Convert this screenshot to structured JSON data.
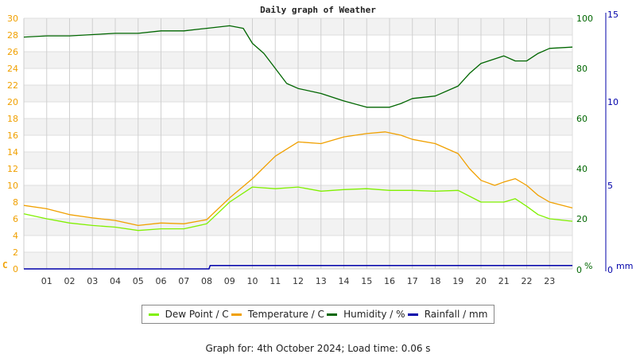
{
  "chart_data": {
    "type": "line",
    "title": "Daily graph of Weather",
    "xlabel": "",
    "x_ticks": [
      "01",
      "02",
      "03",
      "04",
      "05",
      "06",
      "07",
      "08",
      "09",
      "10",
      "11",
      "12",
      "13",
      "14",
      "15",
      "16",
      "17",
      "18",
      "19",
      "20",
      "21",
      "22",
      "23"
    ],
    "x_range": [
      0,
      24
    ],
    "axes": {
      "left": {
        "label": "C",
        "range": [
          0,
          30
        ],
        "ticks": [
          0,
          2,
          4,
          6,
          8,
          10,
          12,
          14,
          16,
          18,
          20,
          22,
          24,
          26,
          28,
          30
        ],
        "color": "#f0a000"
      },
      "right": {
        "label": "%",
        "range": [
          0,
          100
        ],
        "ticks": [
          0,
          20,
          40,
          60,
          80,
          100
        ],
        "color": "#006600"
      },
      "rain": {
        "label": "mm",
        "range": [
          0,
          15
        ],
        "ticks": [
          0,
          5,
          10,
          15
        ],
        "color": "#0000aa"
      }
    },
    "grid": true,
    "legend_position": "bottom",
    "series": [
      {
        "name": "Dew Point / C",
        "axis": "left",
        "color": "#80f000",
        "x": [
          0,
          1,
          2,
          3,
          4,
          5,
          6,
          7,
          8,
          9,
          10,
          11,
          12,
          13,
          14,
          15,
          16,
          17,
          18,
          19,
          20,
          21,
          21.5,
          22,
          22.5,
          23,
          24
        ],
        "values": [
          6.6,
          6.0,
          5.5,
          5.2,
          5.0,
          4.6,
          4.8,
          4.8,
          5.4,
          8.0,
          9.8,
          9.6,
          9.8,
          9.3,
          9.5,
          9.6,
          9.4,
          9.4,
          9.3,
          9.4,
          8.0,
          8.0,
          8.4,
          7.5,
          6.5,
          6.0,
          5.7
        ]
      },
      {
        "name": "Temperature / C",
        "axis": "left",
        "color": "#f0a000",
        "x": [
          0,
          1,
          2,
          3,
          4,
          5,
          6,
          7,
          8,
          9,
          10,
          11,
          12,
          13,
          14,
          15,
          15.8,
          16.5,
          17,
          18,
          19,
          19.5,
          20,
          20.6,
          21,
          21.5,
          22,
          22.5,
          23,
          24
        ],
        "values": [
          7.6,
          7.2,
          6.5,
          6.1,
          5.8,
          5.2,
          5.5,
          5.4,
          5.9,
          8.5,
          10.8,
          13.5,
          15.2,
          15.0,
          15.8,
          16.2,
          16.4,
          16.0,
          15.5,
          15.0,
          13.8,
          12.0,
          10.6,
          10.0,
          10.4,
          10.8,
          10.0,
          8.8,
          8.0,
          7.3
        ]
      },
      {
        "name": "Humidity / %",
        "axis": "right",
        "color": "#006600",
        "x": [
          0,
          1,
          2,
          3,
          4,
          5,
          6,
          7,
          8,
          9,
          9.6,
          10,
          10.5,
          11,
          11.5,
          12,
          13,
          14,
          15,
          16,
          16.5,
          17,
          18,
          19,
          19.5,
          20,
          21,
          21.5,
          22,
          22.5,
          23,
          24
        ],
        "values": [
          92.5,
          93,
          93,
          93.5,
          94,
          94,
          95,
          95,
          96,
          97,
          96,
          90,
          86,
          80,
          74,
          72,
          70,
          67,
          64.5,
          64.5,
          66,
          68,
          69,
          73,
          78,
          82,
          85,
          83,
          83,
          86,
          88,
          88.5
        ]
      },
      {
        "name": "Rainfall / mm",
        "axis": "rain",
        "color": "#0000aa",
        "x": [
          0,
          8.1,
          8.15,
          24
        ],
        "values": [
          0,
          0,
          0.2,
          0.2
        ]
      }
    ]
  },
  "legend": [
    {
      "label": "Dew Point / C",
      "color": "#80f000"
    },
    {
      "label": "Temperature / C",
      "color": "#f0a000"
    },
    {
      "label": "Humidity / %",
      "color": "#006600"
    },
    {
      "label": "Rainfall / mm",
      "color": "#0000aa"
    }
  ],
  "footer": "Graph for: 4th October 2024; Load time: 0.06 s"
}
